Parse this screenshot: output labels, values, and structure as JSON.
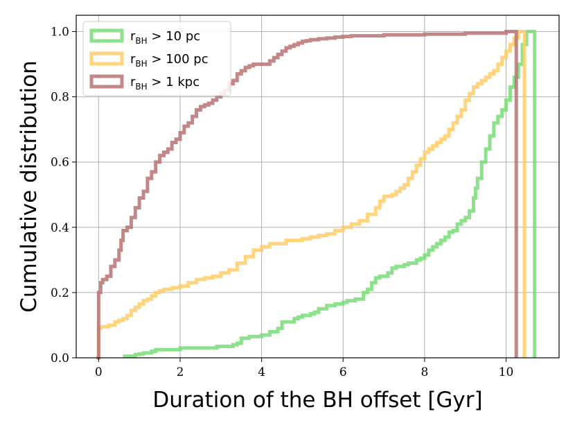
{
  "chart_data": {
    "type": "line",
    "step": true,
    "xlabel": "Duration of the BH offset [Gyr]",
    "ylabel": "Cumulative distribution",
    "xlim": [
      -0.55,
      11.3
    ],
    "ylim": [
      0.0,
      1.05
    ],
    "xticks": [
      "0",
      "2",
      "4",
      "6",
      "8",
      "10"
    ],
    "yticks": [
      "0.0",
      "0.2",
      "0.4",
      "0.6",
      "0.8",
      "1.0"
    ],
    "grid": true,
    "legend_position": "top-left",
    "series": [
      {
        "name": "r_BH > 10 pc",
        "legend_main": "r",
        "legend_sub": "BH",
        "legend_rest": " > 10 pc",
        "color": "#77dd77",
        "x": [
          0.6,
          0.9,
          1.0,
          1.1,
          1.3,
          1.4,
          2.0,
          2.9,
          3.3,
          3.4,
          3.5,
          3.7,
          4.0,
          4.2,
          4.4,
          4.5,
          4.8,
          4.9,
          5.0,
          5.2,
          5.3,
          5.4,
          5.6,
          5.8,
          6.0,
          6.1,
          6.3,
          6.5,
          6.6,
          6.7,
          6.8,
          6.9,
          7.1,
          7.2,
          7.3,
          7.5,
          7.6,
          7.8,
          7.9,
          8.0,
          8.1,
          8.2,
          8.3,
          8.4,
          8.5,
          8.6,
          8.7,
          8.8,
          8.9,
          9.0,
          9.1,
          9.2,
          9.25,
          9.3,
          9.4,
          9.5,
          9.6,
          9.7,
          9.8,
          9.9,
          10.0,
          10.1,
          10.2,
          10.3,
          10.4,
          10.5,
          10.7
        ],
        "y": [
          0.005,
          0.01,
          0.012,
          0.015,
          0.02,
          0.025,
          0.03,
          0.035,
          0.04,
          0.045,
          0.06,
          0.065,
          0.07,
          0.08,
          0.09,
          0.11,
          0.12,
          0.125,
          0.13,
          0.135,
          0.14,
          0.15,
          0.16,
          0.165,
          0.17,
          0.175,
          0.18,
          0.2,
          0.21,
          0.23,
          0.245,
          0.25,
          0.26,
          0.275,
          0.28,
          0.285,
          0.29,
          0.3,
          0.305,
          0.315,
          0.33,
          0.34,
          0.35,
          0.36,
          0.37,
          0.385,
          0.39,
          0.41,
          0.42,
          0.43,
          0.45,
          0.49,
          0.52,
          0.55,
          0.6,
          0.64,
          0.68,
          0.72,
          0.74,
          0.76,
          0.79,
          0.83,
          0.86,
          0.9,
          0.96,
          1.0,
          0.0
        ]
      },
      {
        "name": "r_BH > 100 pc",
        "legend_main": "r",
        "legend_sub": "BH",
        "legend_rest": " > 100 pc",
        "color": "#ffcc66",
        "x": [
          -0.05,
          0.0,
          0.05,
          0.25,
          0.4,
          0.5,
          0.6,
          0.7,
          0.8,
          0.9,
          1.0,
          1.1,
          1.2,
          1.3,
          1.4,
          1.5,
          1.6,
          1.8,
          2.0,
          2.2,
          2.4,
          2.6,
          2.8,
          3.0,
          3.2,
          3.4,
          3.6,
          3.8,
          4.0,
          4.2,
          4.6,
          5.0,
          5.2,
          5.4,
          5.6,
          5.8,
          6.0,
          6.2,
          6.4,
          6.6,
          6.8,
          6.9,
          7.0,
          7.2,
          7.3,
          7.4,
          7.5,
          7.6,
          7.7,
          7.8,
          7.9,
          8.0,
          8.1,
          8.2,
          8.3,
          8.4,
          8.5,
          8.6,
          8.7,
          8.8,
          8.9,
          9.0,
          9.1,
          9.2,
          9.3,
          9.4,
          9.5,
          9.6,
          9.7,
          9.8,
          9.9,
          10.0,
          10.1,
          10.2,
          10.3,
          10.45
        ],
        "y": [
          0.0,
          0.09,
          0.095,
          0.1,
          0.11,
          0.115,
          0.12,
          0.13,
          0.145,
          0.155,
          0.165,
          0.175,
          0.18,
          0.19,
          0.2,
          0.205,
          0.21,
          0.215,
          0.22,
          0.23,
          0.24,
          0.245,
          0.25,
          0.26,
          0.27,
          0.29,
          0.31,
          0.33,
          0.34,
          0.35,
          0.36,
          0.365,
          0.37,
          0.375,
          0.38,
          0.39,
          0.4,
          0.41,
          0.42,
          0.44,
          0.46,
          0.48,
          0.495,
          0.5,
          0.51,
          0.52,
          0.53,
          0.55,
          0.57,
          0.59,
          0.61,
          0.63,
          0.64,
          0.65,
          0.66,
          0.67,
          0.68,
          0.7,
          0.72,
          0.74,
          0.76,
          0.79,
          0.81,
          0.83,
          0.84,
          0.85,
          0.86,
          0.87,
          0.88,
          0.9,
          0.92,
          0.94,
          0.96,
          0.98,
          1.0,
          0.0
        ]
      },
      {
        "name": "r_BH > 1 kpc",
        "legend_main": "r",
        "legend_sub": "BH",
        "legend_rest": " > 1 kpc",
        "color": "#b87272",
        "x": [
          -0.05,
          0.0,
          0.05,
          0.1,
          0.2,
          0.3,
          0.4,
          0.5,
          0.55,
          0.6,
          0.7,
          0.8,
          0.9,
          1.0,
          1.1,
          1.2,
          1.3,
          1.4,
          1.5,
          1.6,
          1.7,
          1.8,
          1.9,
          2.0,
          2.1,
          2.2,
          2.3,
          2.4,
          2.5,
          2.6,
          2.7,
          2.8,
          2.9,
          3.0,
          3.1,
          3.2,
          3.3,
          3.4,
          3.5,
          3.6,
          3.7,
          3.8,
          3.9,
          4.2,
          4.3,
          4.4,
          4.5,
          4.6,
          4.7,
          4.8,
          4.9,
          5.0,
          5.1,
          5.2,
          5.4,
          5.6,
          5.8,
          6.0,
          6.2,
          7.0,
          8.0,
          9.0,
          10.0,
          10.25
        ],
        "y": [
          0.0,
          0.2,
          0.23,
          0.24,
          0.25,
          0.28,
          0.3,
          0.33,
          0.36,
          0.39,
          0.4,
          0.43,
          0.46,
          0.49,
          0.51,
          0.55,
          0.57,
          0.6,
          0.62,
          0.63,
          0.64,
          0.66,
          0.67,
          0.69,
          0.71,
          0.72,
          0.74,
          0.76,
          0.77,
          0.775,
          0.78,
          0.79,
          0.8,
          0.81,
          0.82,
          0.84,
          0.85,
          0.87,
          0.88,
          0.89,
          0.895,
          0.9,
          0.9,
          0.91,
          0.92,
          0.93,
          0.94,
          0.95,
          0.955,
          0.96,
          0.965,
          0.97,
          0.972,
          0.975,
          0.978,
          0.98,
          0.983,
          0.985,
          0.987,
          0.99,
          0.992,
          0.995,
          1.0,
          0.0
        ]
      }
    ]
  }
}
